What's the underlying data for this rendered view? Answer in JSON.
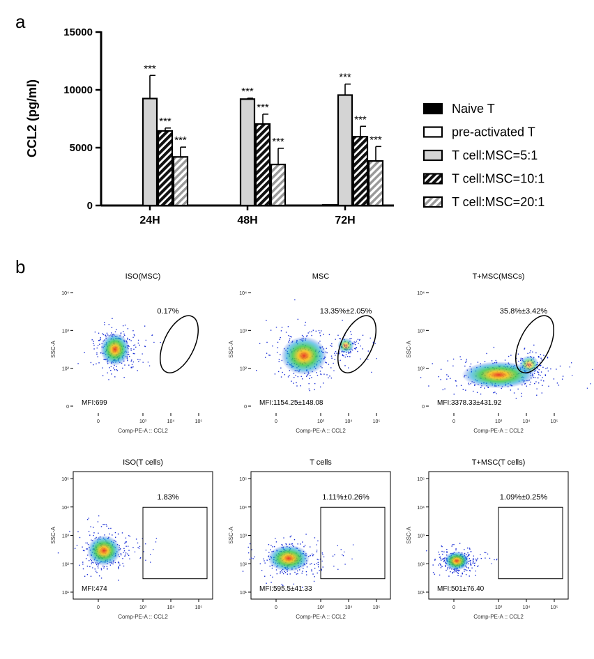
{
  "chart_data": [
    {
      "type": "bar",
      "panel_label": "a",
      "ylabel": "CCL2 (pg/ml)",
      "ylim": [
        0,
        15000
      ],
      "yticks": [
        0,
        5000,
        10000,
        15000
      ],
      "categories": [
        "24H",
        "48H",
        "72H"
      ],
      "legend_position": "right",
      "series": [
        {
          "name": "Naive T",
          "pattern": "solid-black",
          "values": [
            0,
            0,
            0
          ],
          "errors": [
            0,
            0,
            0
          ],
          "sig": [
            "",
            "",
            ""
          ]
        },
        {
          "name": "pre-activated T",
          "pattern": "white",
          "values": [
            0,
            0,
            50
          ],
          "errors": [
            0,
            0,
            0
          ],
          "sig": [
            "",
            "",
            ""
          ]
        },
        {
          "name": "T cell:MSC=5:1",
          "pattern": "light-gray",
          "values": [
            9250,
            9200,
            9550
          ],
          "errors": [
            2000,
            80,
            950
          ],
          "sig": [
            "***",
            "***",
            "***"
          ]
        },
        {
          "name": "T cell:MSC=10:1",
          "pattern": "dark-hatch",
          "values": [
            6450,
            7050,
            5950
          ],
          "errors": [
            250,
            850,
            900
          ],
          "sig": [
            "***",
            "***",
            "***"
          ]
        },
        {
          "name": "T cell:MSC=20:1",
          "pattern": "light-hatch",
          "values": [
            4200,
            3550,
            3850
          ],
          "errors": [
            850,
            1400,
            1250
          ],
          "sig": [
            "***",
            "***",
            "***"
          ]
        }
      ]
    },
    {
      "type": "scatter",
      "subtype": "flow-cytometry-grid",
      "panel_label": "b",
      "xlabel": "Comp-PE-A :: CCL2",
      "ylabel": "SSC-A",
      "plots": [
        {
          "title": "ISO(MSC)",
          "gate": "ellipse",
          "gate_pct": "0.17%",
          "mfi": "MFI:699",
          "cluster": [
            0.3,
            0.5,
            0.14,
            0.17
          ],
          "secondary_cluster": null,
          "y_ticks": [
            "10⁴",
            "10³",
            "10²",
            "0"
          ]
        },
        {
          "title": "MSC",
          "gate": "ellipse",
          "gate_pct": "13.35%±2.05%",
          "mfi": "MFI:1154.25±148.08",
          "cluster": [
            0.38,
            0.55,
            0.22,
            0.2
          ],
          "secondary_cluster": [
            0.68,
            0.47,
            0.1,
            0.1
          ],
          "y_ticks": [
            "10⁴",
            "10³",
            "10²",
            "0"
          ]
        },
        {
          "title": "T+MSC(MSCs)",
          "gate": "ellipse",
          "gate_pct": "35.8%±3.42%",
          "mfi": "MFI:3378.33±431.92",
          "cluster": [
            0.5,
            0.7,
            0.35,
            0.14
          ],
          "secondary_cluster": [
            0.72,
            0.62,
            0.12,
            0.12
          ],
          "y_ticks": [
            "10⁴",
            "10³",
            "10²",
            "0"
          ]
        },
        {
          "title": "ISO(T cells)",
          "gate": "rectangle",
          "gate_pct": "1.83%",
          "mfi": "MFI:474",
          "cluster": [
            0.22,
            0.62,
            0.16,
            0.16
          ],
          "secondary_cluster": null,
          "y_ticks": [
            "10⁵",
            "10⁴",
            "10³",
            "10²",
            "10¹"
          ]
        },
        {
          "title": "T cells",
          "gate": "rectangle",
          "gate_pct": "1.11%±0.26%",
          "mfi": "MFI:595.5±41.33",
          "cluster": [
            0.27,
            0.68,
            0.2,
            0.14
          ],
          "secondary_cluster": null,
          "y_ticks": [
            "10⁵",
            "10⁴",
            "10³",
            "10²",
            "10¹"
          ]
        },
        {
          "title": "T+MSC(T cells)",
          "gate": "rectangle",
          "gate_pct": "1.09%±0.25%",
          "mfi": "MFI:501±76.40",
          "cluster": [
            0.2,
            0.7,
            0.12,
            0.1
          ],
          "secondary_cluster": null,
          "y_ticks": [
            "10⁵",
            "10⁴",
            "10³",
            "10²",
            "10¹"
          ]
        }
      ],
      "x_ticks": [
        "0",
        "10³",
        "10⁴",
        "10⁵"
      ]
    }
  ]
}
